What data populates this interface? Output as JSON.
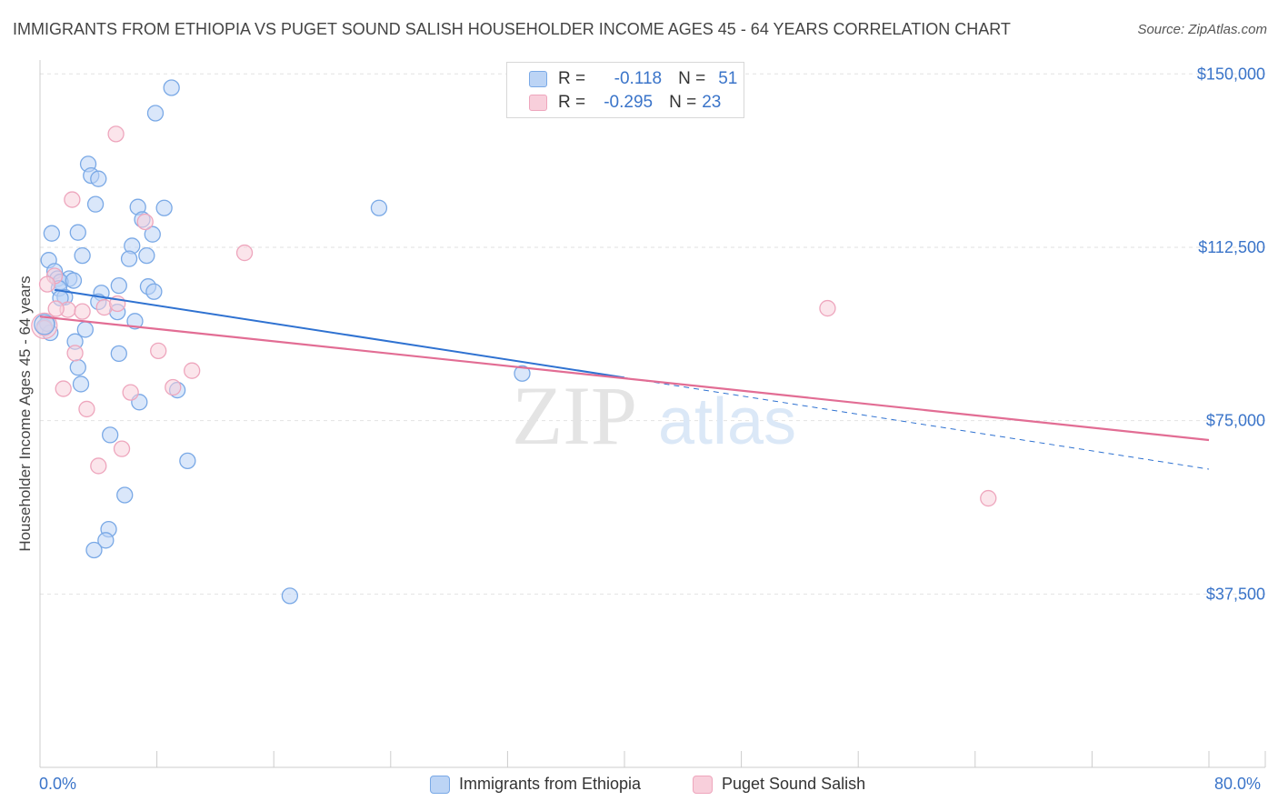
{
  "chart_data": {
    "type": "scatter",
    "title": "IMMIGRANTS FROM ETHIOPIA VS PUGET SOUND SALISH HOUSEHOLDER INCOME AGES 45 - 64 YEARS CORRELATION CHART",
    "source": "Source: ZipAtlas.com",
    "xlabel": "",
    "ylabel": "Householder Income Ages 45 - 64 years",
    "xlim": [
      0,
      80
    ],
    "ylim": [
      0,
      153000
    ],
    "x_tick_labels": [
      "0.0%",
      "80.0%"
    ],
    "y_ticks": [
      {
        "value": 150000,
        "label": "$150,000"
      },
      {
        "value": 112500,
        "label": "$112,500"
      },
      {
        "value": 75000,
        "label": "$75,000"
      },
      {
        "value": 37500,
        "label": "$37,500"
      }
    ],
    "watermark": {
      "part1": "ZIP",
      "part2": "atlas"
    },
    "legend": [
      {
        "r_label": "R =",
        "r_value": "-0.118",
        "n_label": "N =",
        "n_value": "51"
      },
      {
        "r_label": "R =",
        "r_value": "-0.295",
        "n_label": "N =",
        "n_value": "23"
      }
    ],
    "series": [
      {
        "name": "Immigrants from Ethiopia",
        "color": "#7aa9e6",
        "fill": "#bcd4f5",
        "line_color": "#2f72d1",
        "trend": {
          "x0": 1.0,
          "y0": 103300,
          "x1": 40.0,
          "y1": 84300,
          "x_dash_end": 80.0,
          "y_dash_end": 64500
        },
        "points": [
          {
            "x": 9.0,
            "y": 147000
          },
          {
            "x": 7.9,
            "y": 141500
          },
          {
            "x": 3.3,
            "y": 130500
          },
          {
            "x": 3.5,
            "y": 128000
          },
          {
            "x": 4.0,
            "y": 127300
          },
          {
            "x": 3.8,
            "y": 121800
          },
          {
            "x": 6.7,
            "y": 121200
          },
          {
            "x": 8.5,
            "y": 121000
          },
          {
            "x": 23.2,
            "y": 121000
          },
          {
            "x": 7.0,
            "y": 118500
          },
          {
            "x": 0.8,
            "y": 115500
          },
          {
            "x": 2.6,
            "y": 115700
          },
          {
            "x": 7.7,
            "y": 115300
          },
          {
            "x": 6.3,
            "y": 112800
          },
          {
            "x": 2.9,
            "y": 110700
          },
          {
            "x": 7.3,
            "y": 110700
          },
          {
            "x": 6.1,
            "y": 110000
          },
          {
            "x": 0.6,
            "y": 109700
          },
          {
            "x": 1.0,
            "y": 107300
          },
          {
            "x": 1.2,
            "y": 105700
          },
          {
            "x": 2.0,
            "y": 105700
          },
          {
            "x": 1.4,
            "y": 105000
          },
          {
            "x": 2.3,
            "y": 105300
          },
          {
            "x": 5.4,
            "y": 104200
          },
          {
            "x": 7.4,
            "y": 104000
          },
          {
            "x": 7.8,
            "y": 102900
          },
          {
            "x": 1.3,
            "y": 103600
          },
          {
            "x": 4.2,
            "y": 102600
          },
          {
            "x": 1.7,
            "y": 101700
          },
          {
            "x": 1.4,
            "y": 101500
          },
          {
            "x": 4.0,
            "y": 100700
          },
          {
            "x": 5.3,
            "y": 98500
          },
          {
            "x": 6.5,
            "y": 96500
          },
          {
            "x": 0.3,
            "y": 95300
          },
          {
            "x": 3.1,
            "y": 94700
          },
          {
            "x": 2.4,
            "y": 92100
          },
          {
            "x": 5.4,
            "y": 89500
          },
          {
            "x": 2.6,
            "y": 86500
          },
          {
            "x": 33.0,
            "y": 85200
          },
          {
            "x": 2.8,
            "y": 82900
          },
          {
            "x": 9.4,
            "y": 81600
          },
          {
            "x": 6.8,
            "y": 79000
          },
          {
            "x": 4.8,
            "y": 71900
          },
          {
            "x": 10.1,
            "y": 66300
          },
          {
            "x": 5.8,
            "y": 58900
          },
          {
            "x": 4.7,
            "y": 51500
          },
          {
            "x": 4.5,
            "y": 49100
          },
          {
            "x": 3.7,
            "y": 47000
          },
          {
            "x": 17.1,
            "y": 37100
          },
          {
            "x": 0.7,
            "y": 94000
          },
          {
            "x": 0.5,
            "y": 96000
          }
        ]
      },
      {
        "name": "Puget Sound Salish",
        "color": "#eea6bd",
        "fill": "#f8cfdb",
        "line_color": "#e26d94",
        "trend": {
          "x0": 0.0,
          "y0": 97500,
          "x1": 80.0,
          "y1": 70800
        },
        "points": [
          {
            "x": 5.2,
            "y": 137000
          },
          {
            "x": 2.2,
            "y": 122800
          },
          {
            "x": 7.2,
            "y": 118000
          },
          {
            "x": 14.0,
            "y": 111300
          },
          {
            "x": 1.0,
            "y": 106300
          },
          {
            "x": 0.5,
            "y": 104500
          },
          {
            "x": 1.9,
            "y": 99000
          },
          {
            "x": 2.9,
            "y": 98600
          },
          {
            "x": 4.4,
            "y": 99500
          },
          {
            "x": 5.3,
            "y": 100300
          },
          {
            "x": 53.9,
            "y": 99300
          },
          {
            "x": 0.3,
            "y": 95000
          },
          {
            "x": 2.4,
            "y": 89600
          },
          {
            "x": 8.1,
            "y": 90100
          },
          {
            "x": 10.4,
            "y": 85800
          },
          {
            "x": 1.6,
            "y": 81900
          },
          {
            "x": 9.1,
            "y": 82200
          },
          {
            "x": 6.2,
            "y": 81100
          },
          {
            "x": 3.2,
            "y": 77500
          },
          {
            "x": 5.6,
            "y": 68900
          },
          {
            "x": 4.0,
            "y": 65200
          },
          {
            "x": 64.9,
            "y": 58200
          },
          {
            "x": 1.1,
            "y": 99200
          }
        ]
      }
    ]
  }
}
